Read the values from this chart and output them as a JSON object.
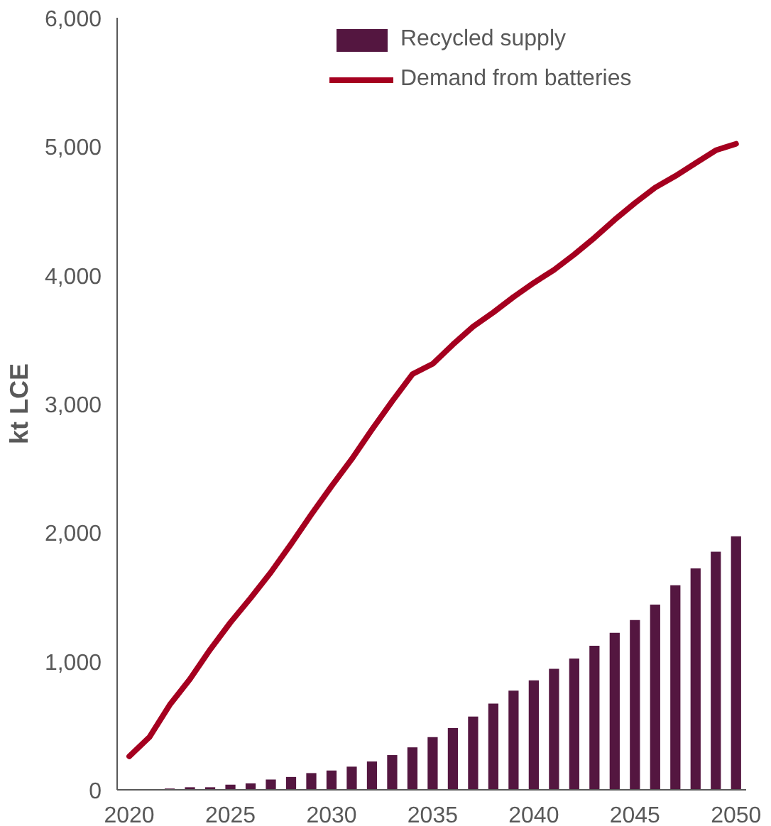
{
  "chart_data": {
    "type": "bar",
    "ylabel": "kt LCE",
    "x": [
      2020,
      2021,
      2022,
      2023,
      2024,
      2025,
      2026,
      2027,
      2028,
      2029,
      2030,
      2031,
      2032,
      2033,
      2034,
      2035,
      2036,
      2037,
      2038,
      2039,
      2040,
      2041,
      2042,
      2043,
      2044,
      2045,
      2046,
      2047,
      2048,
      2049,
      2050
    ],
    "series": [
      {
        "name": "Recycled supply",
        "color": "#541640",
        "values": [
          0,
          0,
          10,
          20,
          20,
          40,
          50,
          80,
          100,
          130,
          150,
          180,
          220,
          270,
          330,
          410,
          480,
          570,
          670,
          770,
          850,
          940,
          1020,
          1120,
          1220,
          1320,
          1440,
          1590,
          1720,
          1850,
          1970
        ]
      },
      {
        "name": "Demand from batteries",
        "type": "line",
        "color": "#a5001f",
        "values": [
          260,
          410,
          660,
          860,
          1090,
          1300,
          1490,
          1690,
          1910,
          2140,
          2360,
          2570,
          2800,
          3020,
          3230,
          3310,
          3460,
          3600,
          3710,
          3830,
          3940,
          4040,
          4160,
          4290,
          4430,
          4560,
          4680,
          4770,
          4870,
          4970,
          5020
        ]
      }
    ],
    "xlim": [
      2019.4,
      2050.5
    ],
    "xticks": [
      2020,
      2025,
      2030,
      2035,
      2040,
      2045,
      2050
    ],
    "ylim": [
      0,
      6000
    ],
    "yticks": [
      {
        "value": 0,
        "label": "0"
      },
      {
        "value": 1000,
        "label": "1,000"
      },
      {
        "value": 2000,
        "label": "2,000"
      },
      {
        "value": 3000,
        "label": "3,000"
      },
      {
        "value": 4000,
        "label": "4,000"
      },
      {
        "value": 5000,
        "label": "5,000"
      },
      {
        "value": 6000,
        "label": "6,000"
      }
    ],
    "grid": false,
    "legend": "top"
  }
}
